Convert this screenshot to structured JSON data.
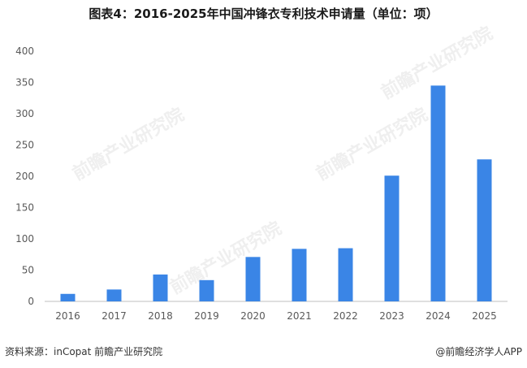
{
  "title": "图表4：2016-2025年中国冲锋衣专利技术申请量（单位：项）",
  "source": "资料来源：inCopat 前瞻产业研究院",
  "brand": "@前瞻经济学人APP",
  "watermark": "前瞻产业研究院",
  "colors": {
    "bar": "#3a85e6",
    "axis": "#bfbfbf",
    "text": "#595959"
  },
  "chart_data": {
    "type": "bar",
    "categories": [
      "2016",
      "2017",
      "2018",
      "2019",
      "2020",
      "2021",
      "2022",
      "2023",
      "2024",
      "2025"
    ],
    "values": [
      12,
      19,
      43,
      34,
      71,
      84,
      85,
      201,
      345,
      227
    ],
    "ylim": [
      0,
      400
    ],
    "yticks": [
      0,
      50,
      100,
      150,
      200,
      250,
      300,
      350,
      400
    ],
    "grid": false,
    "legend": "none",
    "title": "图表4：2016-2025年中国冲锋衣专利技术申请量（单位：项）",
    "xlabel": "",
    "ylabel": ""
  }
}
